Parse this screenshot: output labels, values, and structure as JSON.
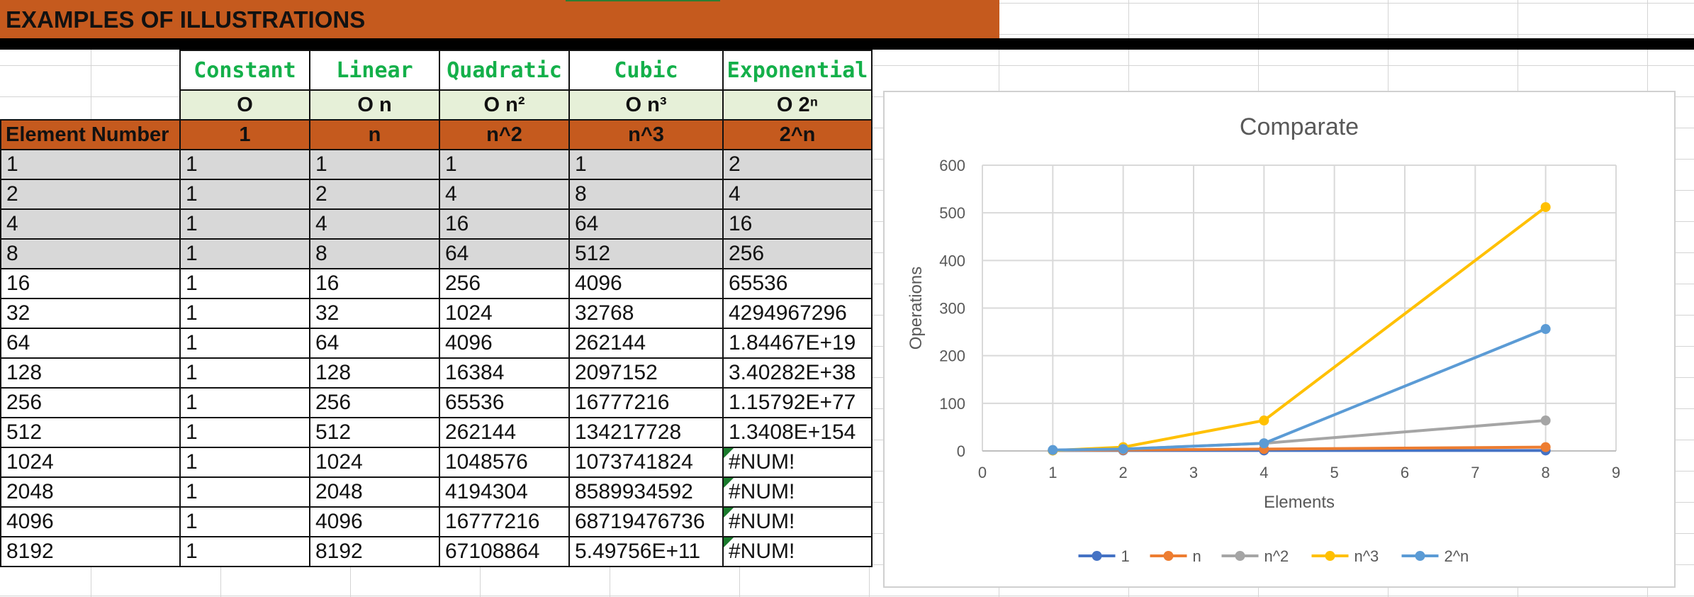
{
  "sheet": {
    "title": "EXAMPLES OF ILLUSTRATIONS"
  },
  "table": {
    "complexity_names": [
      "Constant",
      "Linear",
      "Quadratic",
      "Cubic",
      "Exponential"
    ],
    "notations": [
      "O",
      "O n",
      "O n²",
      "O n³",
      "O 2ⁿ"
    ],
    "header": [
      "Element Number",
      "1",
      "n",
      "n^2",
      "n^3",
      "2^n"
    ],
    "rows": [
      [
        "1",
        "1",
        "1",
        "1",
        "1",
        "2"
      ],
      [
        "2",
        "1",
        "2",
        "4",
        "8",
        "4"
      ],
      [
        "4",
        "1",
        "4",
        "16",
        "64",
        "16"
      ],
      [
        "8",
        "1",
        "8",
        "64",
        "512",
        "256"
      ],
      [
        "16",
        "1",
        "16",
        "256",
        "4096",
        "65536"
      ],
      [
        "32",
        "1",
        "32",
        "1024",
        "32768",
        "4294967296"
      ],
      [
        "64",
        "1",
        "64",
        "4096",
        "262144",
        "1.84467E+19"
      ],
      [
        "128",
        "1",
        "128",
        "16384",
        "2097152",
        "3.40282E+38"
      ],
      [
        "256",
        "1",
        "256",
        "65536",
        "16777216",
        "1.15792E+77"
      ],
      [
        "512",
        "1",
        "512",
        "262144",
        "134217728",
        "1.3408E+154"
      ],
      [
        "1024",
        "1",
        "1024",
        "1048576",
        "1073741824",
        "#NUM!"
      ],
      [
        "2048",
        "1",
        "2048",
        "4194304",
        "8589934592",
        "#NUM!"
      ],
      [
        "4096",
        "1",
        "4096",
        "16777216",
        "68719476736",
        "#NUM!"
      ],
      [
        "8192",
        "1",
        "8192",
        "67108864",
        "5.49756E+11",
        "#NUM!"
      ]
    ],
    "shaded_rows": 4,
    "colors": {
      "orange": "#c55a1e",
      "green_text": "#14b04a",
      "notation_fill": "#e6f0d8",
      "shaded_fill": "#d8d8d8",
      "error_marker": "#1a7a2c"
    }
  },
  "chart_data": {
    "type": "line",
    "title": "Comparate",
    "xlabel": "Elements",
    "ylabel": "Operations",
    "x": [
      1,
      2,
      4,
      8
    ],
    "xlim": [
      0,
      9
    ],
    "ylim": [
      0,
      600
    ],
    "xticks": [
      0,
      1,
      2,
      3,
      4,
      5,
      6,
      7,
      8,
      9
    ],
    "yticks": [
      0,
      100,
      200,
      300,
      400,
      500,
      600
    ],
    "grid": true,
    "legend_position": "bottom",
    "series": [
      {
        "name": "1",
        "values": [
          1,
          1,
          1,
          1
        ],
        "color": "#4472c4"
      },
      {
        "name": "n",
        "values": [
          1,
          2,
          4,
          8
        ],
        "color": "#ed7d31"
      },
      {
        "name": "n^2",
        "values": [
          1,
          4,
          16,
          64
        ],
        "color": "#a5a5a5"
      },
      {
        "name": "n^3",
        "values": [
          1,
          8,
          64,
          512
        ],
        "color": "#ffc000"
      },
      {
        "name": "2^n",
        "values": [
          2,
          4,
          16,
          256
        ],
        "color": "#5b9bd5"
      }
    ]
  }
}
